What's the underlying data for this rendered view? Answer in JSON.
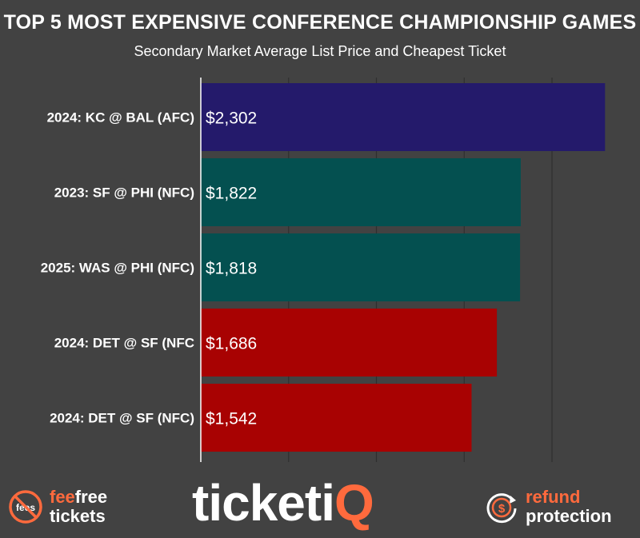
{
  "header": {
    "title": "TOP 5 MOST EXPENSIVE CONFERENCE CHAMPIONSHIP GAMES",
    "subtitle": "Secondary Market Average List Price and Cheapest Ticket"
  },
  "chart_data": {
    "type": "bar",
    "orientation": "horizontal",
    "categories": [
      "2024: KC @ BAL (AFC)",
      "2023: SF @ PHI (NFC)",
      "2025: WAS @ PHI (NFC)",
      "2024: DET @ SF (NFC",
      "2024: DET @ SF (NFC)"
    ],
    "values": [
      2302,
      1822,
      1818,
      1686,
      1542
    ],
    "value_labels": [
      "$2,302",
      "$1,822",
      "$1,818",
      "$1,686",
      "$1,542"
    ],
    "bar_colors": [
      "#241a6b",
      "#045050",
      "#045050",
      "#a80202",
      "#a80202"
    ],
    "xlim": [
      0,
      2500
    ],
    "grid": true,
    "legend": "none"
  },
  "footer": {
    "fee_icon": "no-fees-icon",
    "fee_icon_text": "fees",
    "fee_line1_a": "fee",
    "fee_line1_b": "free",
    "fee_line2": "tickets",
    "logo_text_a": "ticketi",
    "logo_text_b": "Q",
    "refund_icon": "dollar-refresh-icon",
    "refund_icon_text": "$",
    "refund_line1": "refund",
    "refund_line2": "protection"
  },
  "colors": {
    "background": "#424242",
    "accent": "#ff6a3d",
    "gridline": "#2f2f2f"
  }
}
